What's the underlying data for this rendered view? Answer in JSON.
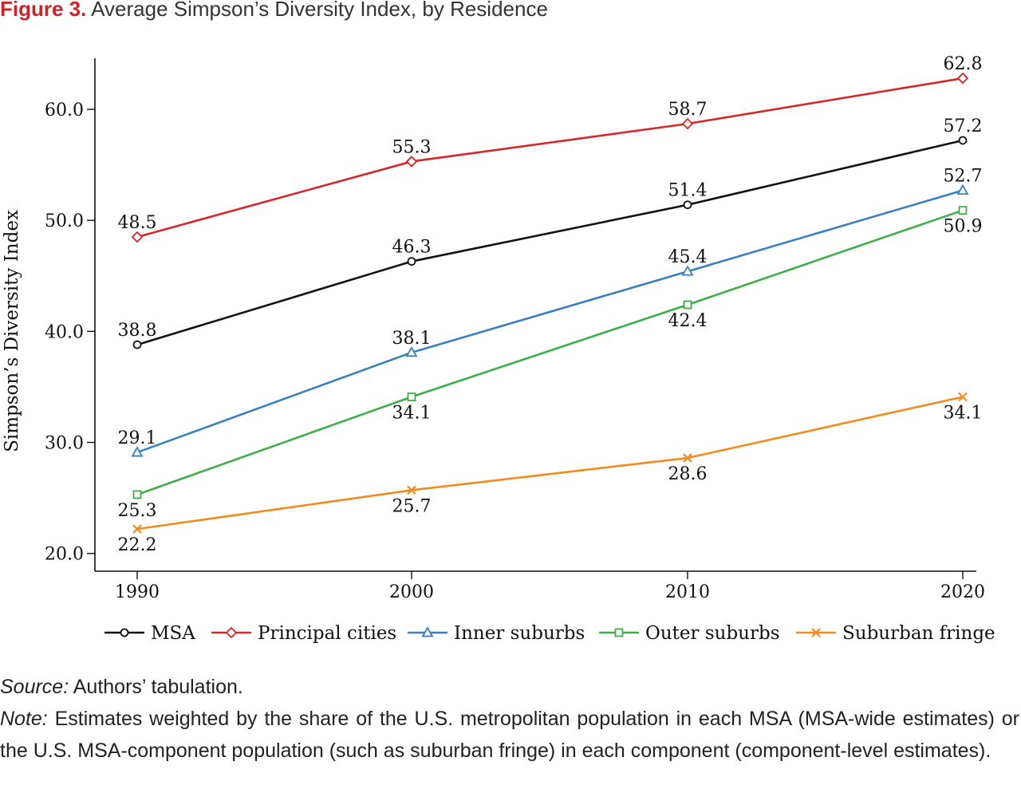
{
  "figure": {
    "label": "Figure 3.",
    "title": "Average Simpson’s Diversity Index, by Residence"
  },
  "chart_data": {
    "type": "line",
    "x": [
      "1990",
      "2000",
      "2010",
      "2020"
    ],
    "ylabel": "Simpson’s Diversity Index",
    "xlabel": "",
    "ylim": [
      18.4,
      64.6
    ],
    "yticks": [
      "20.0",
      "30.0",
      "40.0",
      "50.0",
      "60.0"
    ],
    "grid": false,
    "legend_position": "bottom",
    "series": [
      {
        "name": "MSA",
        "values": [
          38.8,
          46.3,
          51.4,
          57.2
        ],
        "color": "#111111",
        "marker": "circle",
        "labels": [
          "38.8",
          "46.3",
          "51.4",
          "57.2"
        ],
        "label_pos": [
          "above",
          "above",
          "above",
          "above"
        ]
      },
      {
        "name": "Principal cities",
        "values": [
          48.5,
          55.3,
          58.7,
          62.8
        ],
        "color": "#d62728",
        "marker": "diamond",
        "labels": [
          "48.5",
          "55.3",
          "58.7",
          "62.8"
        ],
        "label_pos": [
          "above",
          "above",
          "above",
          "above"
        ]
      },
      {
        "name": "Inner suburbs",
        "values": [
          29.1,
          38.1,
          45.4,
          52.7
        ],
        "color": "#3a7fc1",
        "marker": "triangle",
        "labels": [
          "29.1",
          "38.1",
          "45.4",
          "52.7"
        ],
        "label_pos": [
          "above",
          "above",
          "above",
          "above"
        ]
      },
      {
        "name": "Outer suburbs",
        "values": [
          25.3,
          34.1,
          42.4,
          50.9
        ],
        "color": "#3fae49",
        "marker": "square",
        "labels": [
          "25.3",
          "34.1",
          "42.4",
          "50.9"
        ],
        "label_pos": [
          "below",
          "below",
          "below",
          "below"
        ]
      },
      {
        "name": "Suburban fringe",
        "values": [
          22.2,
          25.7,
          28.6,
          34.1
        ],
        "color": "#f28a1e",
        "marker": "x",
        "labels": [
          "22.2",
          "25.7",
          "28.6",
          "34.1"
        ],
        "label_pos": [
          "below",
          "below",
          "below",
          "below"
        ]
      }
    ]
  },
  "footer": {
    "source_label": "Source:",
    "source_text": " Authors’ tabulation.",
    "note_label": "Note:",
    "note_text": " Estimates weighted by the share of the U.S. metropolitan population in each MSA (MSA-wide estimates) or the U.S. MSA-component population (such as suburban fringe) in each component (component-level estimates)."
  }
}
